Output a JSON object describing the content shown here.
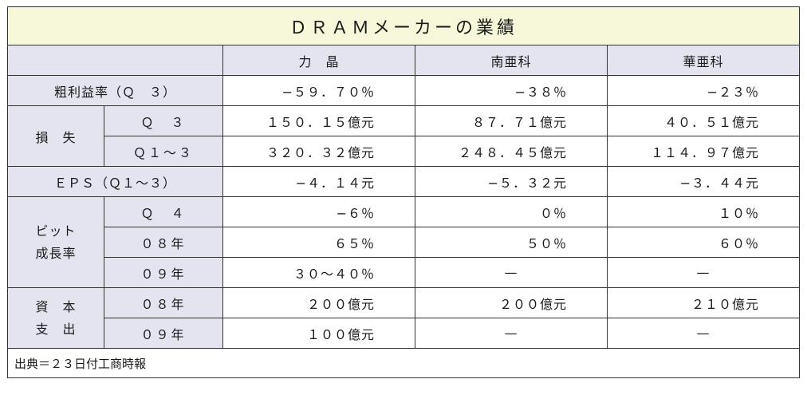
{
  "title": "ＤＲＡＭメーカーの業績",
  "companies": [
    "力　晶",
    "南亜科",
    "華亜科"
  ],
  "rows": {
    "gross_margin": {
      "label": "粗利益率（Ｑ　３）",
      "values": [
        "−５９．７０％",
        "−３８％",
        "−２３％"
      ]
    },
    "loss": {
      "label": "損　失",
      "q3": {
        "label": "Ｑ　３",
        "values": [
          "１５０．１５億元",
          "８７．７１億元",
          "４０．５１億元"
        ]
      },
      "q1_3": {
        "label": "Ｑ１〜３",
        "values": [
          "３２０．３２億元",
          "２４８．４５億元",
          "１１４．９７億元"
        ]
      }
    },
    "eps": {
      "label": "ＥＰＳ（Ｑ１〜３）",
      "values": [
        "−４．１４元",
        "−５．３２元",
        "−３．４４元"
      ]
    },
    "bit_growth": {
      "label_line1": "ビット",
      "label_line2": "成長率",
      "q4": {
        "label": "Ｑ　４",
        "values": [
          "−６％",
          "０％",
          "１０％"
        ]
      },
      "y08": {
        "label": "０８年",
        "values": [
          "６５％",
          "５０％",
          "６０％"
        ]
      },
      "y09": {
        "label": "０９年",
        "values": [
          "３０〜４０％",
          "—",
          "—"
        ]
      }
    },
    "capex": {
      "label_line1": "資　本",
      "label_line2": "支　出",
      "y08": {
        "label": "０８年",
        "values": [
          "２００億元",
          "２００億元",
          "２１０億元"
        ]
      },
      "y09": {
        "label": "０９年",
        "values": [
          "１００億元",
          "—",
          "—"
        ]
      }
    }
  },
  "footer": "出典＝２３日付工商時報"
}
